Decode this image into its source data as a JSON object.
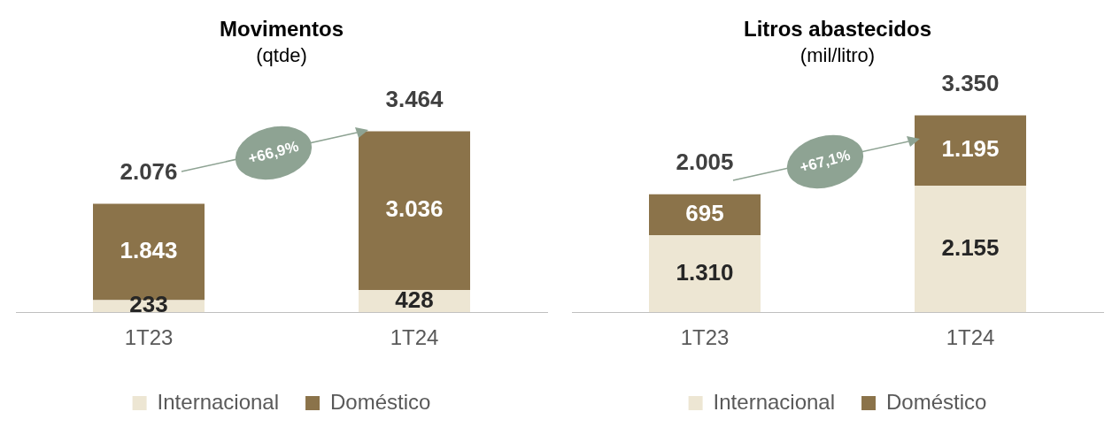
{
  "chart_data": [
    {
      "type": "bar",
      "title": "Movimentos",
      "subtitle": "(qtde)",
      "categories": [
        "1T23",
        "1T24"
      ],
      "stacked": true,
      "legend": "bottom",
      "grid": false,
      "annotations": [
        "+66,9%"
      ],
      "totals": [
        "2.076",
        "3.464"
      ],
      "series": [
        {
          "name": "Internacional",
          "color": "#ede6d3",
          "values": [
            233,
            428
          ],
          "value_labels": [
            "233",
            "428"
          ]
        },
        {
          "name": "Doméstico",
          "color": "#8b734a",
          "values": [
            1843,
            3036
          ],
          "value_labels": [
            "1.843",
            "3.036"
          ]
        }
      ]
    },
    {
      "type": "bar",
      "title": "Litros abastecidos",
      "subtitle": "(mil/litro)",
      "categories": [
        "1T23",
        "1T24"
      ],
      "stacked": true,
      "legend": "bottom",
      "grid": false,
      "annotations": [
        "+67,1%"
      ],
      "totals": [
        "2.005",
        "3.350"
      ],
      "series": [
        {
          "name": "Internacional",
          "color": "#ede6d3",
          "values": [
            1310,
            2155
          ],
          "value_labels": [
            "1.310",
            "2.155"
          ]
        },
        {
          "name": "Doméstico",
          "color": "#8b734a",
          "values": [
            695,
            1195
          ],
          "value_labels": [
            "695",
            "1.195"
          ]
        }
      ]
    }
  ]
}
